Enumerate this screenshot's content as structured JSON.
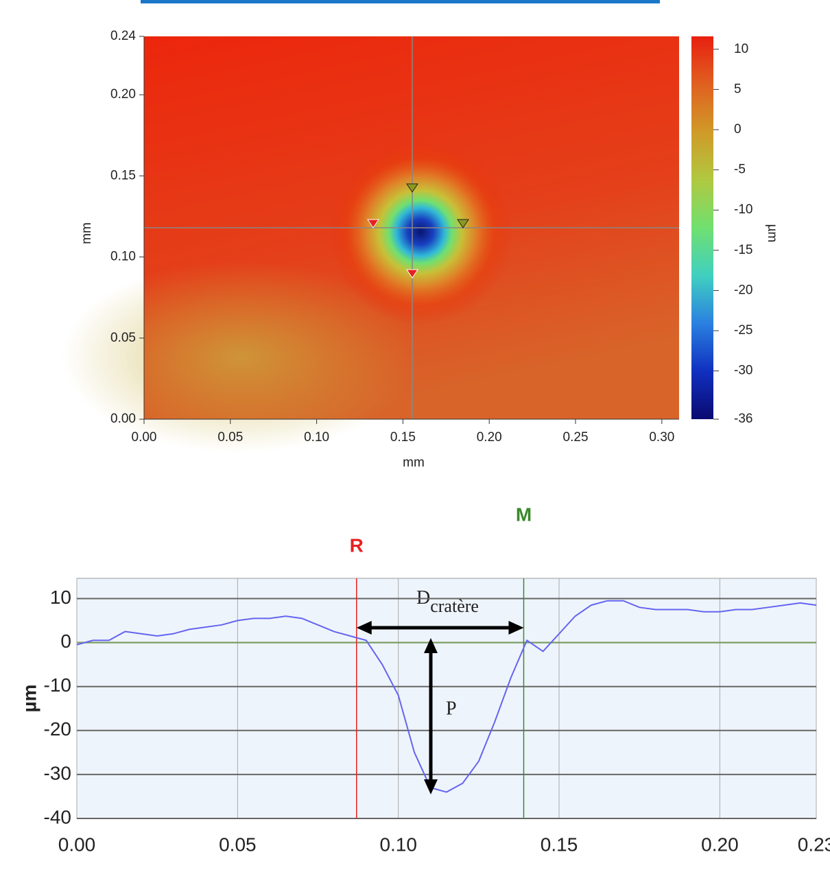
{
  "chart_data": [
    {
      "type": "heatmap",
      "xlabel": "mm",
      "ylabel": "mm",
      "colorbar_label": "µm",
      "xlim": [
        0,
        0.31
      ],
      "ylim": [
        0,
        0.236
      ],
      "xticks": [
        {
          "value": 0,
          "label": "0.00"
        },
        {
          "value": 0.05,
          "label": "0.05"
        },
        {
          "value": 0.1,
          "label": "0.10"
        },
        {
          "value": 0.15,
          "label": "0.15"
        },
        {
          "value": 0.2,
          "label": "0.20"
        },
        {
          "value": 0.25,
          "label": "0.25"
        },
        {
          "value": 0.3,
          "label": "0.30"
        }
      ],
      "yticks": [
        {
          "value": 0,
          "label": "0.00"
        },
        {
          "value": 0.05,
          "label": "0.05"
        },
        {
          "value": 0.1,
          "label": "0.10"
        },
        {
          "value": 0.15,
          "label": "0.15"
        },
        {
          "value": 0.2,
          "label": "0.20"
        },
        {
          "value": 0.236,
          "label": "0.24"
        }
      ],
      "clim": [
        -36,
        11.6
      ],
      "cticks": [
        10,
        5,
        0,
        -5,
        -10,
        -15,
        -20,
        -25,
        -30,
        -36
      ],
      "colormap": [
        "#0a0a70",
        "#1030c0",
        "#2a80e0",
        "#40d0c0",
        "#70e070",
        "#b0c840",
        "#d09a28",
        "#e06020",
        "#e82010"
      ]
    },
    {
      "type": "line",
      "ylabel": "µm",
      "x": [
        0,
        0.005,
        0.01,
        0.015,
        0.02,
        0.025,
        0.03,
        0.035,
        0.04,
        0.045,
        0.05,
        0.055,
        0.06,
        0.065,
        0.07,
        0.075,
        0.08,
        0.085,
        0.09,
        0.095,
        0.1,
        0.105,
        0.11,
        0.115,
        0.12,
        0.125,
        0.13,
        0.135,
        0.14,
        0.145,
        0.15,
        0.155,
        0.16,
        0.165,
        0.17,
        0.175,
        0.18,
        0.185,
        0.19,
        0.195,
        0.2,
        0.205,
        0.21,
        0.215,
        0.22,
        0.225,
        0.23
      ],
      "series": [
        {
          "color": "#6464f0",
          "values": [
            -0.5,
            0.5,
            0.5,
            2.5,
            2,
            1.5,
            2,
            3,
            3.5,
            4,
            5,
            5.5,
            5.5,
            6,
            5.5,
            4,
            2.5,
            1.5,
            0.5,
            -5,
            -12,
            -25,
            -33,
            -34,
            -32,
            -27,
            -18,
            -8,
            0.5,
            -2,
            2,
            6,
            8.5,
            9.5,
            9.5,
            8,
            7.5,
            7.5,
            7.5,
            7,
            7,
            7.5,
            7.5,
            8,
            8.5,
            9,
            8.5
          ]
        }
      ],
      "xlim": [
        0,
        0.23
      ],
      "ylim": [
        -40,
        14.6
      ],
      "xticks": [
        {
          "value": 0,
          "label": "0.00"
        },
        {
          "value": 0.05,
          "label": "0.05"
        },
        {
          "value": 0.1,
          "label": "0.10"
        },
        {
          "value": 0.15,
          "label": "0.15"
        },
        {
          "value": 0.2,
          "label": "0.20"
        },
        {
          "value": 0.23,
          "label": "0.23"
        }
      ],
      "yticks": [
        10,
        0,
        -10,
        -20,
        -30,
        -40
      ],
      "markers": [
        {
          "label": "R",
          "x": 0.087,
          "color": "#e82020"
        },
        {
          "label": "M",
          "x": 0.139,
          "color": "#3a8a2a"
        }
      ],
      "annotations": [
        {
          "text": "D",
          "subscript": "cratère"
        },
        {
          "text": "P"
        }
      ]
    }
  ]
}
